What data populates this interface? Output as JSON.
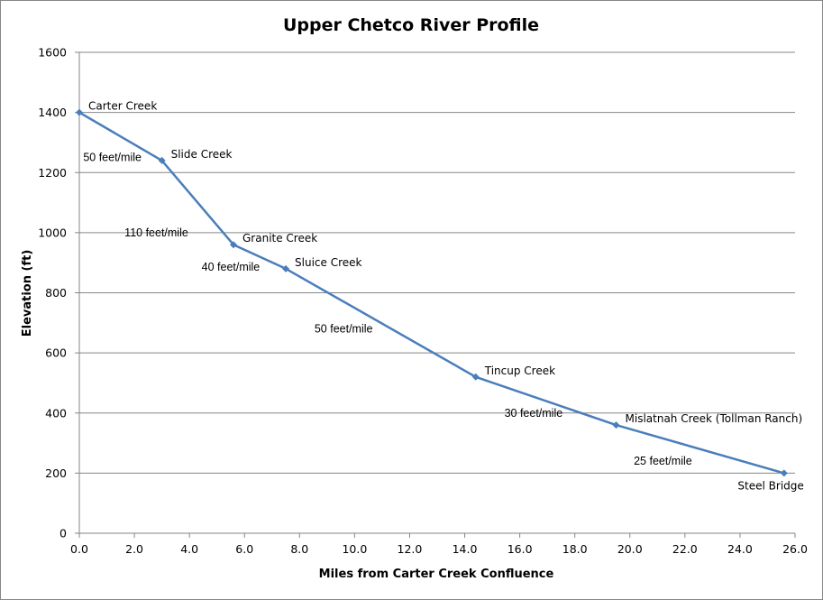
{
  "chart_data": {
    "type": "line",
    "title": "Upper Chetco River Profile",
    "xlabel": "Miles from Carter Creek Confluence",
    "ylabel": "Elevation (ft)",
    "xlim": [
      0,
      26
    ],
    "ylim": [
      0,
      1600
    ],
    "x_ticks": [
      "0.0",
      "2.0",
      "4.0",
      "6.0",
      "8.0",
      "10.0",
      "12.0",
      "14.0",
      "16.0",
      "18.0",
      "20.0",
      "22.0",
      "24.0",
      "26.0"
    ],
    "y_ticks": [
      "0",
      "200",
      "400",
      "600",
      "800",
      "1000",
      "1200",
      "1400",
      "1600"
    ],
    "grid": "horizontal",
    "series_color": "#4a7ebb",
    "points": [
      {
        "x": 0.0,
        "y": 1400,
        "label": "Carter Creek"
      },
      {
        "x": 3.0,
        "y": 1240,
        "label": "Slide Creek"
      },
      {
        "x": 5.6,
        "y": 960,
        "label": "Granite Creek"
      },
      {
        "x": 7.5,
        "y": 880,
        "label": "Sluice Creek"
      },
      {
        "x": 14.4,
        "y": 520,
        "label": "Tincup Creek"
      },
      {
        "x": 19.5,
        "y": 360,
        "label": "Mislatnah Creek (Tollman Ranch)"
      },
      {
        "x": 25.6,
        "y": 200,
        "label": "Steel Bridge"
      }
    ],
    "annotations": [
      {
        "text": "50 feet/mile",
        "x": 1.2,
        "y": 1250
      },
      {
        "text": "110 feet/mile",
        "x": 2.8,
        "y": 1000
      },
      {
        "text": "40 feet/mile",
        "x": 5.5,
        "y": 885
      },
      {
        "text": "50 feet/mile",
        "x": 9.6,
        "y": 680
      },
      {
        "text": "30 feet/mile",
        "x": 16.5,
        "y": 400
      },
      {
        "text": "25 feet/mile",
        "x": 21.2,
        "y": 240
      }
    ]
  }
}
